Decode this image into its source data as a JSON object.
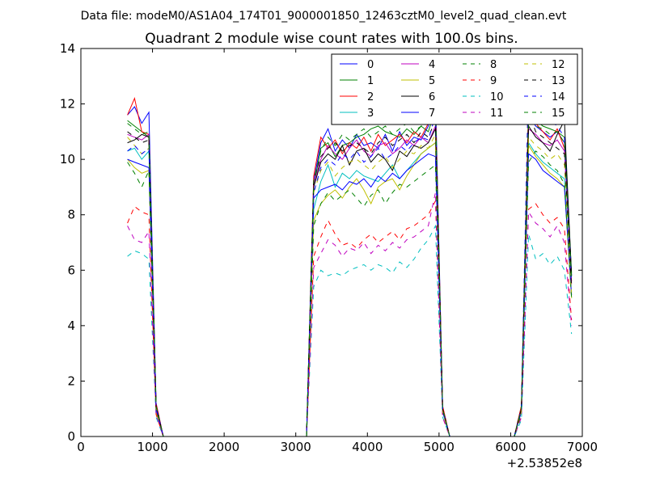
{
  "chart_data": {
    "type": "line",
    "suptitle": "Data file: modeM0/AS1A04_174T01_9000001850_12463cztM0_level2_quad_clean.evt",
    "title": "Quadrant 2 module wise count rates with 100.0s bins.",
    "xlabel": "",
    "ylabel": "",
    "x_offset_label": "+2.53852e8",
    "xlim": [
      0,
      7000
    ],
    "ylim": [
      0,
      14
    ],
    "xticks": [
      0,
      1000,
      2000,
      3000,
      4000,
      5000,
      6000,
      7000
    ],
    "yticks": [
      0,
      2,
      4,
      6,
      8,
      10,
      12,
      14
    ],
    "legend": {
      "location": "top-right",
      "ncol": 4
    },
    "x": [
      650,
      750,
      850,
      950,
      1050,
      1150,
      1250,
      1350,
      1450,
      1550,
      1650,
      1750,
      1850,
      1950,
      2050,
      2150,
      2250,
      2350,
      2450,
      2550,
      2650,
      2750,
      2850,
      2950,
      3050,
      3150,
      3250,
      3350,
      3450,
      3550,
      3650,
      3750,
      3850,
      3950,
      4050,
      4150,
      4250,
      4350,
      4450,
      4550,
      4650,
      4750,
      4850,
      4950,
      5050,
      5150,
      5250,
      5350,
      5450,
      5550,
      5650,
      5750,
      5850,
      5950,
      6050,
      6150,
      6250,
      6350,
      6450,
      6550,
      6650,
      6750,
      6850
    ],
    "series": [
      {
        "name": "0",
        "color": "#0000ff",
        "dash": "solid",
        "values": [
          11.6,
          11.9,
          11.3,
          11.7,
          1.2,
          0,
          0,
          0,
          0,
          0,
          0,
          0,
          0,
          0,
          0,
          0,
          0,
          0,
          0,
          0,
          0,
          0,
          0,
          0,
          0,
          0,
          9.2,
          10.6,
          11.1,
          10.3,
          10.7,
          10.4,
          10.9,
          10.5,
          10.6,
          10.4,
          10.9,
          10.3,
          11.0,
          10.5,
          10.8,
          10.7,
          11.2,
          12.4,
          1.0,
          0,
          0,
          0,
          0,
          0,
          0,
          0,
          0,
          0,
          0,
          1.0,
          11.6,
          11.2,
          11.0,
          10.8,
          11.0,
          10.6,
          5.8
        ]
      },
      {
        "name": "1",
        "color": "#008000",
        "dash": "solid",
        "values": [
          11.4,
          11.2,
          11.0,
          10.8,
          1.1,
          0,
          0,
          0,
          0,
          0,
          0,
          0,
          0,
          0,
          0,
          0,
          0,
          0,
          0,
          0,
          0,
          0,
          0,
          0,
          0,
          0,
          9.0,
          10.4,
          10.6,
          10.1,
          10.5,
          10.6,
          10.8,
          10.9,
          11.1,
          11.2,
          11.0,
          10.9,
          10.8,
          11.1,
          10.9,
          11.2,
          11.0,
          11.8,
          1.0,
          0,
          0,
          0,
          0,
          0,
          0,
          0,
          0,
          0,
          0,
          1.1,
          11.9,
          11.4,
          11.2,
          11.1,
          11.0,
          10.8,
          5.9
        ]
      },
      {
        "name": "2",
        "color": "#ff0000",
        "dash": "solid",
        "values": [
          11.6,
          12.2,
          11.0,
          10.9,
          1.2,
          0,
          0,
          0,
          0,
          0,
          0,
          0,
          0,
          0,
          0,
          0,
          0,
          0,
          0,
          0,
          0,
          0,
          0,
          0,
          0,
          0,
          9.4,
          10.8,
          10.4,
          10.7,
          10.2,
          10.6,
          10.4,
          10.8,
          10.3,
          10.9,
          10.5,
          10.7,
          10.9,
          10.6,
          11.0,
          10.8,
          11.3,
          11.9,
          1.1,
          0,
          0,
          0,
          0,
          0,
          0,
          0,
          0,
          0,
          0,
          1.1,
          12.0,
          11.3,
          11.0,
          10.7,
          11.1,
          10.4,
          5.6
        ]
      },
      {
        "name": "3",
        "color": "#00bfbf",
        "dash": "solid",
        "values": [
          10.3,
          10.4,
          10.0,
          10.3,
          1.0,
          0,
          0,
          0,
          0,
          0,
          0,
          0,
          0,
          0,
          0,
          0,
          0,
          0,
          0,
          0,
          0,
          0,
          0,
          0,
          0,
          0,
          8.2,
          9.2,
          9.8,
          9.0,
          9.5,
          9.3,
          9.6,
          9.4,
          9.3,
          9.2,
          9.5,
          9.8,
          9.3,
          9.6,
          9.9,
          10.2,
          10.4,
          10.6,
          0.9,
          0,
          0,
          0,
          0,
          0,
          0,
          0,
          0,
          0,
          0,
          0.9,
          10.6,
          10.2,
          9.9,
          9.7,
          9.5,
          9.3,
          5.0
        ]
      },
      {
        "name": "4",
        "color": "#bf00bf",
        "dash": "solid",
        "values": [
          10.9,
          10.8,
          10.7,
          10.9,
          1.1,
          0,
          0,
          0,
          0,
          0,
          0,
          0,
          0,
          0,
          0,
          0,
          0,
          0,
          0,
          0,
          0,
          0,
          0,
          0,
          0,
          0,
          9.1,
          10.0,
          10.5,
          10.2,
          10.0,
          10.4,
          10.7,
          10.3,
          10.1,
          10.5,
          10.6,
          10.2,
          10.4,
          10.7,
          10.5,
          10.8,
          10.6,
          11.2,
          1.0,
          0,
          0,
          0,
          0,
          0,
          0,
          0,
          0,
          0,
          0,
          1.0,
          11.1,
          10.9,
          10.6,
          10.5,
          10.7,
          10.3,
          5.5
        ]
      },
      {
        "name": "5",
        "color": "#bfbf00",
        "dash": "solid",
        "values": [
          10.0,
          9.7,
          9.5,
          9.6,
          0.9,
          0,
          0,
          0,
          0,
          0,
          0,
          0,
          0,
          0,
          0,
          0,
          0,
          0,
          0,
          0,
          0,
          0,
          0,
          0,
          0,
          0,
          7.8,
          8.4,
          8.7,
          8.9,
          8.6,
          9.0,
          9.3,
          8.9,
          8.4,
          9.0,
          9.2,
          9.3,
          8.9,
          9.4,
          9.8,
          10.2,
          10.4,
          10.6,
          0.9,
          0,
          0,
          0,
          0,
          0,
          0,
          0,
          0,
          0,
          0,
          0.9,
          10.5,
          10.1,
          9.8,
          9.5,
          9.3,
          9.0,
          5.0
        ]
      },
      {
        "name": "6",
        "color": "#000000",
        "dash": "solid",
        "values": [
          10.6,
          10.7,
          10.9,
          10.8,
          1.1,
          0,
          0,
          0,
          0,
          0,
          0,
          0,
          0,
          0,
          0,
          0,
          0,
          0,
          0,
          0,
          0,
          0,
          0,
          0,
          0,
          0,
          9.0,
          9.9,
          10.2,
          10.0,
          10.5,
          9.8,
          10.3,
          10.4,
          9.9,
          10.2,
          10.0,
          9.6,
          10.3,
          10.1,
          10.5,
          10.4,
          10.6,
          11.1,
          1.0,
          0,
          0,
          0,
          0,
          0,
          0,
          0,
          0,
          0,
          0,
          1.0,
          11.2,
          10.8,
          10.6,
          10.3,
          10.9,
          11.4,
          5.8
        ]
      },
      {
        "name": "7",
        "color": "#0000ff",
        "dash": "solid",
        "values": [
          10.0,
          9.9,
          9.8,
          9.7,
          1.0,
          0,
          0,
          0,
          0,
          0,
          0,
          0,
          0,
          0,
          0,
          0,
          0,
          0,
          0,
          0,
          0,
          0,
          0,
          0,
          0,
          0,
          8.6,
          8.9,
          9.0,
          9.1,
          8.9,
          9.2,
          9.1,
          9.3,
          9.0,
          9.4,
          9.2,
          9.5,
          9.3,
          9.6,
          9.8,
          10.0,
          10.2,
          10.1,
          0.9,
          0,
          0,
          0,
          0,
          0,
          0,
          0,
          0,
          0,
          0,
          0.9,
          10.2,
          10.0,
          9.6,
          9.4,
          9.2,
          9.0,
          5.1
        ]
      },
      {
        "name": "8",
        "color": "#008000",
        "dash": "dashed",
        "values": [
          9.9,
          9.5,
          9.0,
          9.6,
          1.0,
          0,
          0,
          0,
          0,
          0,
          0,
          0,
          0,
          0,
          0,
          0,
          0,
          0,
          0,
          0,
          0,
          0,
          0,
          0,
          0,
          0,
          7.6,
          8.4,
          8.8,
          8.5,
          8.7,
          8.9,
          8.6,
          8.3,
          8.7,
          8.9,
          8.4,
          8.8,
          9.1,
          9.0,
          9.2,
          9.4,
          9.6,
          9.8,
          0.9,
          0,
          0,
          0,
          0,
          0,
          0,
          0,
          0,
          0,
          0,
          0.8,
          9.9,
          10.3,
          10.1,
          9.8,
          9.6,
          9.1,
          5.0
        ]
      },
      {
        "name": "9",
        "color": "#ff0000",
        "dash": "dashed",
        "values": [
          7.7,
          8.3,
          8.1,
          8.0,
          0.8,
          0,
          0,
          0,
          0,
          0,
          0,
          0,
          0,
          0,
          0,
          0,
          0,
          0,
          0,
          0,
          0,
          0,
          0,
          0,
          0,
          0,
          6.5,
          7.2,
          7.8,
          7.3,
          6.9,
          7.0,
          6.8,
          7.1,
          7.3,
          7.0,
          7.2,
          7.4,
          7.1,
          7.5,
          7.6,
          7.8,
          8.0,
          8.5,
          0.7,
          0,
          0,
          0,
          0,
          0,
          0,
          0,
          0,
          0,
          0,
          0.7,
          8.2,
          8.4,
          8.0,
          7.7,
          7.9,
          7.5,
          4.2
        ]
      },
      {
        "name": "10",
        "color": "#00bfbf",
        "dash": "dashed",
        "values": [
          6.5,
          6.7,
          6.6,
          6.4,
          0.7,
          0,
          0,
          0,
          0,
          0,
          0,
          0,
          0,
          0,
          0,
          0,
          0,
          0,
          0,
          0,
          0,
          0,
          0,
          0,
          0,
          0,
          5.4,
          6.0,
          5.8,
          5.9,
          5.8,
          6.0,
          6.1,
          6.2,
          6.0,
          6.2,
          6.1,
          5.9,
          6.3,
          6.1,
          6.4,
          6.8,
          7.1,
          7.6,
          0.7,
          0,
          0,
          0,
          0,
          0,
          0,
          0,
          0,
          0,
          0,
          0.6,
          7.3,
          6.4,
          6.6,
          6.2,
          6.5,
          6.0,
          3.7
        ]
      },
      {
        "name": "11",
        "color": "#bf00bf",
        "dash": "dashed",
        "values": [
          7.6,
          7.1,
          7.0,
          7.4,
          0.8,
          0,
          0,
          0,
          0,
          0,
          0,
          0,
          0,
          0,
          0,
          0,
          0,
          0,
          0,
          0,
          0,
          0,
          0,
          0,
          0,
          0,
          6.1,
          6.6,
          7.1,
          6.9,
          6.5,
          6.8,
          6.7,
          7.0,
          6.6,
          6.9,
          6.7,
          7.0,
          6.8,
          7.1,
          7.2,
          7.4,
          7.6,
          8.8,
          0.7,
          0,
          0,
          0,
          0,
          0,
          0,
          0,
          0,
          0,
          0,
          0.7,
          8.1,
          7.7,
          7.5,
          7.2,
          7.6,
          7.0,
          4.0
        ]
      },
      {
        "name": "12",
        "color": "#bfbf00",
        "dash": "dashed",
        "values": [
          10.8,
          10.5,
          10.2,
          10.4,
          1.0,
          0,
          0,
          0,
          0,
          0,
          0,
          0,
          0,
          0,
          0,
          0,
          0,
          0,
          0,
          0,
          0,
          0,
          0,
          0,
          0,
          0,
          8.8,
          9.6,
          9.9,
          9.4,
          9.7,
          9.9,
          10.0,
          9.8,
          9.6,
          9.9,
          10.1,
          9.7,
          10.0,
          10.3,
          10.2,
          10.5,
          10.4,
          10.9,
          0.9,
          0,
          0,
          0,
          0,
          0,
          0,
          0,
          0,
          0,
          0,
          0.9,
          10.8,
          10.5,
          10.3,
          10.0,
          10.2,
          9.8,
          5.2
        ]
      },
      {
        "name": "13",
        "color": "#000000",
        "dash": "dashed",
        "values": [
          11.0,
          10.8,
          10.6,
          10.7,
          1.1,
          0,
          0,
          0,
          0,
          0,
          0,
          0,
          0,
          0,
          0,
          0,
          0,
          0,
          0,
          0,
          0,
          0,
          0,
          0,
          0,
          0,
          9.3,
          10.1,
          10.4,
          10.6,
          10.3,
          10.5,
          10.6,
          10.4,
          10.2,
          10.6,
          10.8,
          10.5,
          10.7,
          10.9,
          10.6,
          11.0,
          10.8,
          11.4,
          1.0,
          0,
          0,
          0,
          0,
          0,
          0,
          0,
          0,
          0,
          0,
          1.0,
          11.7,
          11.0,
          10.8,
          10.6,
          10.4,
          10.2,
          5.4
        ]
      },
      {
        "name": "14",
        "color": "#0000ff",
        "dash": "dashed",
        "values": [
          10.3,
          10.5,
          10.2,
          10.4,
          1.0,
          0,
          0,
          0,
          0,
          0,
          0,
          0,
          0,
          0,
          0,
          0,
          0,
          0,
          0,
          0,
          0,
          0,
          0,
          0,
          0,
          0,
          8.8,
          9.7,
          10.0,
          9.8,
          10.2,
          10.0,
          10.3,
          9.9,
          10.1,
          10.4,
          10.0,
          10.2,
          10.5,
          10.3,
          10.6,
          10.8,
          10.7,
          11.6,
          1.0,
          0,
          0,
          0,
          0,
          0,
          0,
          0,
          0,
          0,
          0,
          1.0,
          13.1,
          11.6,
          12.1,
          11.4,
          11.2,
          10.8,
          5.6
        ]
      },
      {
        "name": "15",
        "color": "#008000",
        "dash": "dashed",
        "values": [
          11.3,
          11.1,
          10.9,
          11.0,
          1.1,
          0,
          0,
          0,
          0,
          0,
          0,
          0,
          0,
          0,
          0,
          0,
          0,
          0,
          0,
          0,
          0,
          0,
          0,
          0,
          0,
          0,
          9.2,
          10.3,
          10.8,
          10.5,
          10.9,
          10.7,
          10.9,
          11.1,
          10.8,
          11.0,
          11.2,
          10.9,
          11.1,
          11.3,
          11.0,
          11.2,
          11.4,
          12.0,
          1.0,
          0,
          0,
          0,
          0,
          0,
          0,
          0,
          0,
          0,
          0,
          1.0,
          11.6,
          11.2,
          11.1,
          10.9,
          11.0,
          10.6,
          5.7
        ]
      }
    ]
  }
}
